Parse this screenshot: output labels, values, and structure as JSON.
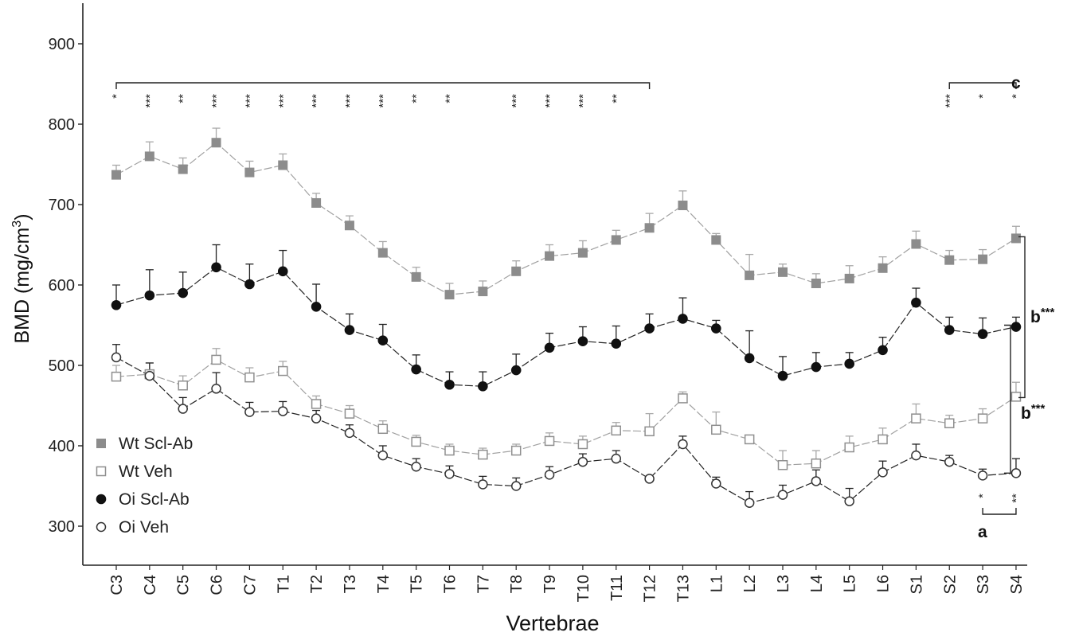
{
  "chart_data": {
    "type": "line",
    "title": "",
    "xlabel": "Vertebrae",
    "ylabel": "BMD (mg/cm",
    "ylabel_sup": "3",
    "ylabel_close": ")",
    "ylim": [
      250,
      950
    ],
    "yticks": [
      300,
      400,
      500,
      600,
      700,
      800,
      900
    ],
    "grid": false,
    "legend_position": "bottom-left",
    "categories": [
      "C3",
      "C4",
      "C5",
      "C6",
      "C7",
      "T1",
      "T2",
      "T3",
      "T4",
      "T5",
      "T6",
      "T7",
      "T8",
      "T9",
      "T10",
      "T11",
      "T12",
      "T13",
      "L1",
      "L2",
      "L3",
      "L4",
      "L5",
      "L6",
      "S1",
      "S2",
      "S3",
      "S4"
    ],
    "series": [
      {
        "name": "Wt Scl-Ab",
        "marker": "square-filled",
        "color": "#8c8c8c",
        "values": [
          737,
          760,
          744,
          777,
          740,
          749,
          702,
          674,
          640,
          610,
          588,
          592,
          617,
          636,
          640,
          656,
          671,
          699,
          656,
          612,
          616,
          602,
          608,
          621,
          651,
          631,
          632,
          658
        ],
        "err": [
          12,
          18,
          14,
          18,
          14,
          14,
          12,
          12,
          14,
          12,
          14,
          13,
          13,
          14,
          15,
          12,
          18,
          18,
          8,
          26,
          10,
          12,
          16,
          14,
          16,
          12,
          12,
          15
        ]
      },
      {
        "name": "Wt Veh",
        "marker": "square-open",
        "color": "#9a9a9a",
        "values": [
          486,
          489,
          475,
          507,
          485,
          493,
          452,
          440,
          421,
          405,
          394,
          389,
          394,
          406,
          402,
          419,
          418,
          459,
          420,
          408,
          376,
          378,
          398,
          408,
          434,
          428,
          434,
          461
        ],
        "err": [
          14,
          14,
          12,
          14,
          12,
          12,
          10,
          10,
          10,
          8,
          8,
          8,
          8,
          10,
          10,
          10,
          22,
          8,
          22,
          0,
          18,
          16,
          14,
          14,
          18,
          10,
          12,
          18
        ]
      },
      {
        "name": "Oi Scl-Ab",
        "marker": "circle-filled",
        "color": "#111111",
        "values": [
          575,
          587,
          590,
          622,
          601,
          617,
          573,
          544,
          531,
          495,
          476,
          474,
          494,
          522,
          530,
          527,
          546,
          558,
          546,
          509,
          487,
          498,
          502,
          519,
          578,
          544,
          539,
          548
        ],
        "err": [
          25,
          32,
          26,
          28,
          25,
          26,
          28,
          20,
          20,
          18,
          16,
          18,
          20,
          18,
          18,
          22,
          18,
          26,
          10,
          34,
          24,
          18,
          14,
          16,
          18,
          16,
          20,
          12
        ]
      },
      {
        "name": "Oi Veh",
        "marker": "circle-open",
        "color": "#333333",
        "values": [
          510,
          487,
          446,
          471,
          442,
          443,
          434,
          416,
          388,
          374,
          365,
          352,
          350,
          364,
          380,
          384,
          359,
          402,
          353,
          329,
          339,
          356,
          331,
          367,
          388,
          380,
          363,
          366
        ],
        "err": [
          16,
          16,
          14,
          20,
          12,
          12,
          10,
          10,
          12,
          10,
          10,
          10,
          10,
          10,
          10,
          10,
          0,
          10,
          8,
          14,
          12,
          14,
          16,
          14,
          14,
          8,
          8,
          18
        ]
      }
    ],
    "significance_c": {
      "label": "c",
      "stars": [
        {
          "x": "C3",
          "text": "*"
        },
        {
          "x": "C4",
          "text": "***"
        },
        {
          "x": "C5",
          "text": "**"
        },
        {
          "x": "C6",
          "text": "***"
        },
        {
          "x": "C7",
          "text": "***"
        },
        {
          "x": "T1",
          "text": "***"
        },
        {
          "x": "T2",
          "text": "***"
        },
        {
          "x": "T3",
          "text": "***"
        },
        {
          "x": "T4",
          "text": "***"
        },
        {
          "x": "T5",
          "text": "**"
        },
        {
          "x": "T6",
          "text": "**"
        },
        {
          "x": "T8",
          "text": "***"
        },
        {
          "x": "T9",
          "text": "***"
        },
        {
          "x": "T10",
          "text": "***"
        },
        {
          "x": "T11",
          "text": "**"
        },
        {
          "x": "S2",
          "text": "***"
        },
        {
          "x": "S3",
          "text": "*"
        },
        {
          "x": "S4",
          "text": "*"
        }
      ],
      "brackets": [
        {
          "from": "C3",
          "to": "T12",
          "y": 868
        },
        {
          "from": "S2",
          "to": "S4",
          "y": 868
        }
      ]
    },
    "significance_a": {
      "label": "a",
      "stars": [
        {
          "x": "S3",
          "text": "*"
        },
        {
          "x": "S4",
          "text": "**"
        }
      ]
    },
    "significance_b": [
      {
        "label": "b",
        "stars": "***",
        "range": [
          460,
          660
        ]
      },
      {
        "label": "b",
        "stars": "***",
        "range": [
          366,
          550
        ]
      }
    ]
  }
}
